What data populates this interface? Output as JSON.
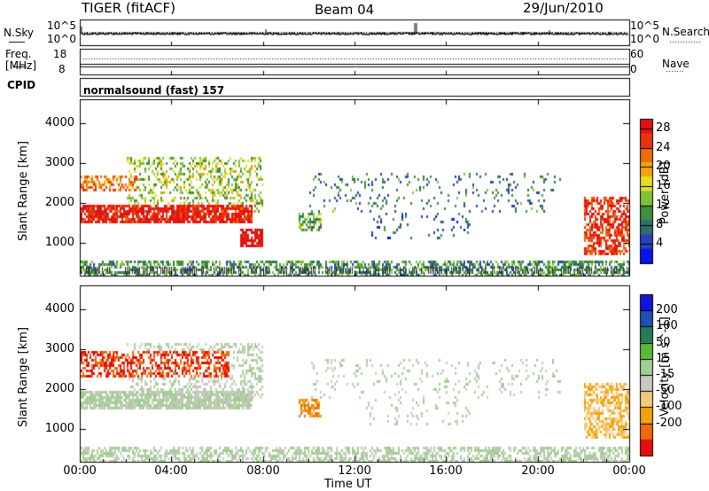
{
  "header": {
    "radar": "TIGER (fitACF)",
    "beam": "Beam 04",
    "date": "29/Jun/2010"
  },
  "nsky_panel": {
    "left_label": "N.Sky",
    "right_label": "N.Search",
    "left_ticks": [
      "10^5",
      "10^0"
    ],
    "right_ticks": [
      "10^5",
      "10^0"
    ]
  },
  "freq_panel": {
    "left_label_1": "Freq.",
    "left_label_2": "[MHz]",
    "left_ticks": [
      "18",
      "8"
    ],
    "right_label": "Nave",
    "right_ticks": [
      "60",
      "0"
    ]
  },
  "cpid": {
    "label": "CPID",
    "value": "normalsound (fast) 157"
  },
  "chart_data": [
    {
      "type": "heatmap",
      "name": "Power",
      "ylabel": "Slant Range [km]",
      "xlabel": "Time UT",
      "x_tick_labels": [
        "00:00",
        "04:00",
        "08:00",
        "12:00",
        "16:00",
        "20:00",
        "00:00"
      ],
      "y_tick_labels": [
        "1000",
        "2000",
        "3000",
        "4000"
      ],
      "ylim": [
        180,
        4600
      ],
      "xlim_hours": [
        0,
        24
      ],
      "colorbar": {
        "label": "Power [dB]",
        "tick_labels": [
          "4",
          "8",
          "12",
          "16",
          "20",
          "24",
          "28"
        ],
        "range": [
          0,
          30
        ],
        "colors": [
          "#0a14e6",
          "#2a3fb8",
          "#2f6e6e",
          "#3f8f3c",
          "#7fc23a",
          "#e8dc20",
          "#f5a30a",
          "#f06a0a",
          "#e8320f",
          "#e31313"
        ]
      },
      "features": [
        {
          "region": "main band",
          "time_hours": [
            0,
            7.5
          ],
          "range_km": [
            1500,
            2000
          ],
          "power_db": 28
        },
        {
          "region": "upper patch",
          "time_hours": [
            0,
            2.5
          ],
          "range_km": [
            2300,
            2700
          ],
          "power_db": 22
        },
        {
          "region": "post-7 enhancement",
          "time_hours": [
            7,
            8
          ],
          "range_km": [
            900,
            1400
          ],
          "power_db": 30
        },
        {
          "region": "late evening",
          "time_hours": [
            22,
            24
          ],
          "range_km": [
            700,
            2200
          ],
          "power_db": 26
        },
        {
          "region": "ground scatter floor",
          "time_hours": [
            0,
            24
          ],
          "range_km": [
            180,
            600
          ],
          "power_db": 10
        }
      ]
    },
    {
      "type": "heatmap",
      "name": "Velocity",
      "ylabel": "Slant Range [km]",
      "xlabel": "Time UT",
      "x_tick_labels": [
        "00:00",
        "04:00",
        "08:00",
        "12:00",
        "16:00",
        "20:00",
        "00:00"
      ],
      "y_tick_labels": [
        "1000",
        "2000",
        "3000",
        "4000"
      ],
      "ylim": [
        180,
        4600
      ],
      "xlim_hours": [
        0,
        24
      ],
      "colorbar": {
        "label": "Velocity [m s^-1]",
        "tick_labels": [
          "200",
          "100",
          "50",
          "15",
          "-15",
          "-50",
          "-100",
          "-200"
        ],
        "range": [
          -250,
          250
        ],
        "colors": [
          "#e30f0f",
          "#f06a0a",
          "#f5a30a",
          "#f5c878",
          "#c8c8c0",
          "#a0d090",
          "#5cb83a",
          "#2a7a5a",
          "#2050b0",
          "#1414d8"
        ]
      },
      "features": [
        {
          "region": "main band",
          "time_hours": [
            0,
            7.5
          ],
          "range_km": [
            1500,
            2000
          ],
          "velocity": 0
        },
        {
          "region": "upper arc",
          "time_hours": [
            0,
            6.5
          ],
          "range_km": [
            2300,
            3000
          ],
          "velocity": -200
        },
        {
          "region": "late evening",
          "time_hours": [
            22,
            24
          ],
          "range_km": [
            800,
            2200
          ],
          "velocity": -100
        },
        {
          "region": "ground scatter floor",
          "time_hours": [
            0,
            24
          ],
          "range_km": [
            180,
            600
          ],
          "velocity": -30
        }
      ]
    }
  ]
}
